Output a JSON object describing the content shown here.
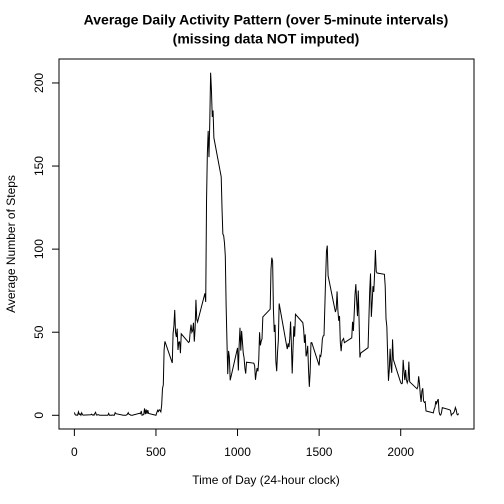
{
  "chart_data": {
    "type": "line",
    "title": "Average Daily Activity Pattern (over 5-minute intervals)",
    "subtitle": "(missing data NOT imputed)",
    "x_label": "Time of Day (24-hour clock)",
    "y_label": "Average Number of Steps",
    "xlim": [
      -94.2,
      2449.2
    ],
    "ylim": [
      -8.25,
      214.42
    ],
    "xticks": [
      0,
      500,
      1000,
      1500,
      2000
    ],
    "yticks": [
      0,
      50,
      100,
      150,
      200
    ],
    "x": [
      0,
      5,
      10,
      15,
      20,
      25,
      30,
      35,
      40,
      45,
      50,
      55,
      100,
      105,
      110,
      115,
      120,
      125,
      130,
      135,
      140,
      145,
      150,
      155,
      200,
      205,
      210,
      215,
      220,
      225,
      230,
      235,
      240,
      245,
      250,
      255,
      300,
      305,
      310,
      315,
      320,
      325,
      330,
      335,
      340,
      345,
      350,
      355,
      400,
      405,
      410,
      415,
      420,
      425,
      430,
      435,
      440,
      445,
      450,
      455,
      500,
      505,
      510,
      515,
      520,
      525,
      530,
      535,
      540,
      545,
      550,
      555,
      600,
      605,
      610,
      615,
      620,
      625,
      630,
      635,
      640,
      645,
      650,
      655,
      700,
      705,
      710,
      715,
      720,
      725,
      730,
      735,
      740,
      745,
      750,
      755,
      800,
      805,
      810,
      815,
      820,
      825,
      830,
      835,
      840,
      845,
      850,
      855,
      900,
      905,
      910,
      915,
      920,
      925,
      930,
      935,
      940,
      945,
      950,
      955,
      1000,
      1005,
      1010,
      1015,
      1020,
      1025,
      1030,
      1035,
      1040,
      1045,
      1050,
      1055,
      1100,
      1105,
      1110,
      1115,
      1120,
      1125,
      1130,
      1135,
      1140,
      1145,
      1150,
      1155,
      1200,
      1205,
      1210,
      1215,
      1220,
      1225,
      1230,
      1235,
      1240,
      1245,
      1250,
      1255,
      1300,
      1305,
      1310,
      1315,
      1320,
      1325,
      1330,
      1335,
      1340,
      1345,
      1350,
      1355,
      1400,
      1405,
      1410,
      1415,
      1420,
      1425,
      1430,
      1435,
      1440,
      1445,
      1450,
      1455,
      1500,
      1505,
      1510,
      1515,
      1520,
      1525,
      1530,
      1535,
      1540,
      1545,
      1550,
      1555,
      1600,
      1605,
      1610,
      1615,
      1620,
      1625,
      1630,
      1635,
      1640,
      1645,
      1650,
      1655,
      1700,
      1705,
      1710,
      1715,
      1720,
      1725,
      1730,
      1735,
      1740,
      1745,
      1750,
      1755,
      1800,
      1805,
      1810,
      1815,
      1820,
      1825,
      1830,
      1835,
      1840,
      1845,
      1850,
      1855,
      1900,
      1905,
      1910,
      1915,
      1920,
      1925,
      1930,
      1935,
      1940,
      1945,
      1950,
      1955,
      2000,
      2005,
      2010,
      2015,
      2020,
      2025,
      2030,
      2035,
      2040,
      2045,
      2050,
      2055,
      2100,
      2105,
      2110,
      2115,
      2120,
      2125,
      2130,
      2135,
      2140,
      2145,
      2150,
      2155,
      2200,
      2205,
      2210,
      2215,
      2220,
      2225,
      2230,
      2235,
      2240,
      2245,
      2250,
      2255,
      2300,
      2305,
      2310,
      2315,
      2320,
      2325,
      2330,
      2335,
      2340,
      2345,
      2350,
      2355
    ],
    "series": [
      {
        "color": "#000000",
        "values": [
          1.72,
          0.34,
          0.13,
          0.15,
          0.08,
          2.09,
          0.53,
          0.87,
          0,
          1.47,
          0.3,
          0.13,
          0.32,
          0.68,
          0.15,
          0.34,
          0,
          1.11,
          1.83,
          0.17,
          0.17,
          0.38,
          0.26,
          0,
          0,
          0,
          1.13,
          0,
          0,
          0.13,
          0,
          0.23,
          0,
          0,
          1.55,
          0.94,
          0,
          0,
          0,
          0,
          0.21,
          0.62,
          1.62,
          0.58,
          0.49,
          0.08,
          0,
          0,
          1.19,
          0.94,
          2.57,
          0,
          0.34,
          0.36,
          4.11,
          0.66,
          3.49,
          0.83,
          3.11,
          1.11,
          0,
          1.57,
          3,
          2.25,
          3.32,
          2.96,
          2.09,
          6.06,
          16.02,
          18.34,
          39.45,
          44.49,
          31.49,
          49.26,
          53.77,
          63.45,
          49.96,
          47.08,
          52.15,
          39.34,
          44.02,
          44.17,
          37.36,
          49.04,
          43.81,
          44.38,
          50.51,
          54.51,
          49.92,
          50.98,
          55.68,
          44.32,
          52.26,
          69.55,
          57.85,
          56.15,
          73.38,
          68.21,
          129.43,
          157.53,
          171.15,
          155.4,
          177.3,
          206.17,
          195.92,
          179.57,
          183.4,
          167.02,
          143.45,
          124.04,
          109.11,
          108.11,
          103.72,
          95.96,
          66.21,
          45.23,
          24.79,
          38.75,
          34.98,
          21.06,
          40.57,
          26.98,
          42.42,
          52.66,
          38.92,
          50.79,
          44.28,
          37.42,
          34.7,
          28.34,
          25.09,
          31.94,
          31.36,
          29.68,
          21.32,
          25.55,
          28.38,
          26.47,
          33.43,
          49.98,
          42.04,
          44.6,
          46.04,
          59.19,
          63.87,
          87.7,
          94.85,
          92.77,
          63.4,
          50.17,
          54.47,
          32.42,
          26.53,
          37.74,
          45.06,
          67.28,
          42.34,
          39.89,
          43.26,
          40.98,
          46.25,
          56.43,
          42.75,
          25.13,
          39.96,
          53.55,
          47.32,
          60.81,
          55.75,
          51.96,
          43.58,
          48.7,
          35.47,
          37.55,
          41.85,
          27.51,
          17.11,
          26.08,
          43.62,
          43.77,
          30.02,
          36.08,
          35.49,
          38.85,
          45.96,
          47.75,
          48.13,
          65.32,
          82.91,
          98.66,
          102.11,
          83.96,
          62.13,
          64.13,
          74.55,
          63.17,
          56.91,
          59.77,
          43.87,
          38.57,
          44.66,
          45.45,
          46.21,
          43.68,
          46.62,
          56.3,
          50.72,
          61.23,
          72.72,
          78.94,
          68.94,
          59.66,
          75.09,
          56.51,
          34.77,
          37.45,
          40.68,
          58.02,
          74.7,
          85.32,
          59.26,
          67.77,
          77.7,
          74.25,
          85.34,
          99.45,
          86.58,
          85.6,
          84.87,
          77.83,
          58.04,
          53.36,
          36.32,
          20.72,
          27.4,
          40.02,
          30.21,
          25.55,
          45.66,
          33.53,
          19.62,
          19.02,
          19.34,
          33.34,
          26.81,
          21.17,
          27.3,
          21.34,
          19.55,
          21.32,
          32.3,
          20.15,
          15.94,
          17.23,
          23.45,
          19.25,
          12.45,
          8.02,
          14.66,
          16.3,
          8.68,
          7.79,
          8.13,
          2.62,
          1.45,
          3.68,
          4.81,
          8.51,
          7.08,
          8.7,
          9.75,
          2.21,
          0.32,
          0.11,
          1.6,
          4.6,
          3.3,
          2.85,
          0,
          0.83,
          0.96,
          1.58,
          2.6,
          4.7,
          3.3,
          0.64,
          0.23,
          1.08
        ]
      }
    ]
  }
}
